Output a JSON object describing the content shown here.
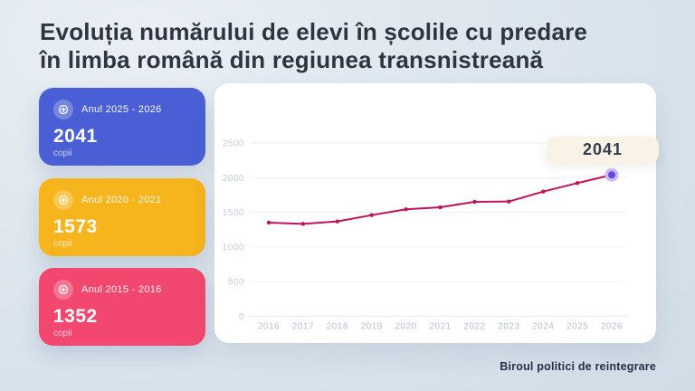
{
  "page": {
    "title_line1": "Evoluția numărului de elevi în școlile cu predare",
    "title_line2": "în limba română din regiunea transnistreană",
    "footer": "Biroul politici de reintegrare"
  },
  "cards": [
    {
      "period": "Anul 2025 - 2026",
      "value": "2041",
      "unit": "copii",
      "color": "#4a5fd6",
      "icon": "target-plus-icon"
    },
    {
      "period": "Anul 2020 - 2021",
      "value": "1573",
      "unit": "copii",
      "color": "#f6b41d",
      "icon": "target-plus-icon"
    },
    {
      "period": "Anul 2015 - 2016",
      "value": "1352",
      "unit": "copii",
      "color": "#f2486f",
      "icon": "target-plus-icon"
    }
  ],
  "chart_data": {
    "type": "line",
    "x": [
      "2016",
      "2017",
      "2018",
      "2019",
      "2020",
      "2021",
      "2022",
      "2023",
      "2024",
      "2025",
      "2026"
    ],
    "values": [
      1352,
      1334,
      1369,
      1460,
      1544,
      1573,
      1652,
      1656,
      1800,
      1923,
      2041
    ],
    "ylim": [
      0,
      2500
    ],
    "yticks": [
      0,
      500,
      1000,
      1500,
      2000,
      2500
    ],
    "grid": true,
    "legend_position": "none",
    "line_color": "#c1125b",
    "marker_color": "#c1125b",
    "highlight_point": {
      "x": "2026",
      "value": 2041,
      "dot_color": "#6b46e5",
      "halo_color": "#c9bcf4"
    },
    "tooltip_value": "2041",
    "axis_label_color_y": "#c5cdd9",
    "axis_label_color_x": "#b7c0cc",
    "gridline_color": "#f0f3f6",
    "baseline_color": "#e6ebf0"
  },
  "theme": {
    "background_top": "#e9eff4",
    "background_bottom": "#cedbe5",
    "title_color": "#2e3542",
    "card_blue": "#4a5fd6",
    "card_yellow": "#f6b41d",
    "card_pink": "#f2486f",
    "chart_card_bg": "#ffffff",
    "tooltip_bg": "#f8f3e6",
    "footer_color": "#22304a"
  }
}
